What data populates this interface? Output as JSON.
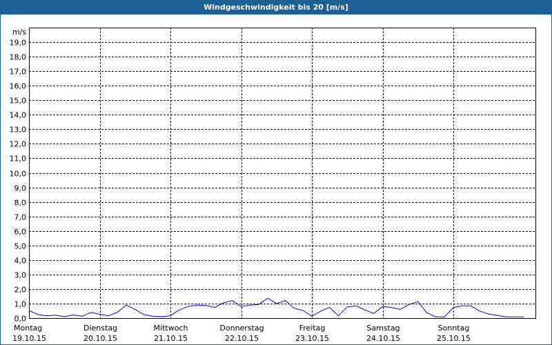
{
  "window": {
    "title": "Windgeschwindigkeit bis 20 [m/s]"
  },
  "chart_data": {
    "type": "line",
    "title": "Windgeschwindigkeit bis 20 [m/s]",
    "ylabel": "m/s",
    "ylim": [
      0,
      20
    ],
    "yticks": [
      "0,0",
      "1,0",
      "2,0",
      "3,0",
      "4,0",
      "5,0",
      "6,0",
      "7,0",
      "8,0",
      "9,0",
      "10,0",
      "11,0",
      "12,0",
      "13,0",
      "14,0",
      "15,0",
      "16,0",
      "17,0",
      "18,0",
      "19,0"
    ],
    "xticks": [
      {
        "day": "Montag",
        "date": "19.10.15"
      },
      {
        "day": "Dienstag",
        "date": "20.10.15"
      },
      {
        "day": "Mittwoch",
        "date": "21.10.15"
      },
      {
        "day": "Donnerstag",
        "date": "22.10.15"
      },
      {
        "day": "Freitag",
        "date": "23.10.15"
      },
      {
        "day": "Samstag",
        "date": "24.10.15"
      },
      {
        "day": "Sonntag",
        "date": "25.10.15"
      }
    ],
    "xlim": [
      "19.10.15 00:00",
      "26.10.15 04:00"
    ],
    "grid": true,
    "line_color": "#0000ff",
    "series": [
      {
        "points": [
          [
            "19.10.15 00:00",
            0.52
          ],
          [
            "19.10.15 03:00",
            0.24
          ],
          [
            "19.10.15 06:00",
            0.16
          ],
          [
            "19.10.15 09:00",
            0.2
          ],
          [
            "19.10.15 12:00",
            0.1
          ],
          [
            "19.10.15 15:00",
            0.22
          ],
          [
            "19.10.15 18:00",
            0.13
          ],
          [
            "19.10.15 21:00",
            0.39
          ],
          [
            "20.10.15 00:00",
            0.26
          ],
          [
            "20.10.15 03:00",
            0.16
          ],
          [
            "20.10.15 06:00",
            0.4
          ],
          [
            "20.10.15 09:00",
            0.9
          ],
          [
            "20.10.15 12:00",
            0.6
          ],
          [
            "20.10.15 15:00",
            0.24
          ],
          [
            "20.10.15 18:00",
            0.13
          ],
          [
            "20.10.15 21:00",
            0.1
          ],
          [
            "21.10.15 00:00",
            0.16
          ],
          [
            "21.10.15 03:00",
            0.56
          ],
          [
            "21.10.15 06:00",
            0.8
          ],
          [
            "21.10.15 09:00",
            0.9
          ],
          [
            "21.10.15 12:00",
            0.87
          ],
          [
            "21.10.15 15:00",
            0.73
          ],
          [
            "21.10.15 18:00",
            1.05
          ],
          [
            "21.10.15 21:00",
            1.2
          ],
          [
            "22.10.15 00:00",
            0.8
          ],
          [
            "22.10.15 03:00",
            0.9
          ],
          [
            "22.10.15 06:00",
            0.94
          ],
          [
            "22.10.15 09:00",
            1.37
          ],
          [
            "22.10.15 12:00",
            1.0
          ],
          [
            "22.10.15 15:00",
            1.2
          ],
          [
            "22.10.15 18:00",
            0.68
          ],
          [
            "22.10.15 21:00",
            0.52
          ],
          [
            "23.10.15 00:00",
            0.13
          ],
          [
            "23.10.15 03:00",
            0.48
          ],
          [
            "23.10.15 06:00",
            0.73
          ],
          [
            "23.10.15 09:00",
            0.16
          ],
          [
            "23.10.15 12:00",
            0.77
          ],
          [
            "23.10.15 15:00",
            0.84
          ],
          [
            "23.10.15 18:00",
            0.56
          ],
          [
            "23.10.15 21:00",
            0.32
          ],
          [
            "24.10.15 00:00",
            0.8
          ],
          [
            "24.10.15 03:00",
            0.73
          ],
          [
            "24.10.15 06:00",
            0.6
          ],
          [
            "24.10.15 09:00",
            0.94
          ],
          [
            "24.10.15 12:00",
            1.13
          ],
          [
            "24.10.15 15:00",
            0.37
          ],
          [
            "24.10.15 18:00",
            0.08
          ],
          [
            "24.10.15 21:00",
            0.08
          ],
          [
            "25.10.15 00:00",
            0.73
          ],
          [
            "25.10.15 03:00",
            0.84
          ],
          [
            "25.10.15 06:00",
            0.84
          ],
          [
            "25.10.15 09:00",
            0.48
          ],
          [
            "25.10.15 12:00",
            0.27
          ],
          [
            "25.10.15 15:00",
            0.19
          ],
          [
            "25.10.15 18:00",
            0.08
          ],
          [
            "25.10.15 21:00",
            0.08
          ],
          [
            "26.10.15 00:00",
            0.08
          ]
        ]
      }
    ]
  }
}
